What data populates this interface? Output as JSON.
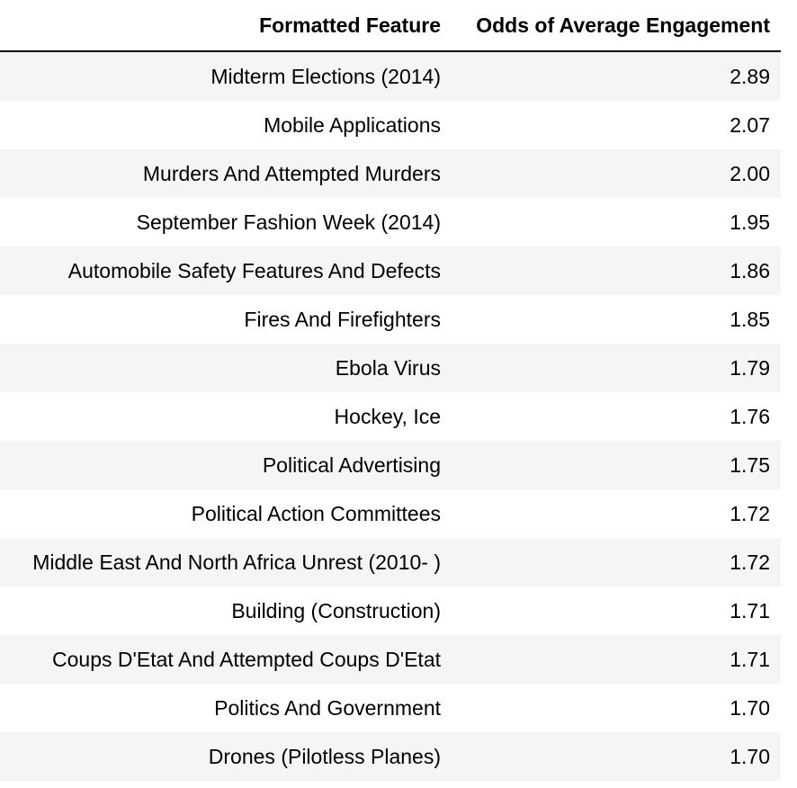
{
  "table": {
    "headers": [
      "Formatted Feature",
      "Odds of Average Engagement"
    ],
    "rows": [
      [
        "Midterm Elections (2014)",
        "2.89"
      ],
      [
        "Mobile Applications",
        "2.07"
      ],
      [
        "Murders And Attempted Murders",
        "2.00"
      ],
      [
        "September Fashion Week (2014)",
        "1.95"
      ],
      [
        "Automobile Safety Features And Defects",
        "1.86"
      ],
      [
        "Fires And Firefighters",
        "1.85"
      ],
      [
        "Ebola Virus",
        "1.79"
      ],
      [
        "Hockey, Ice",
        "1.76"
      ],
      [
        "Political Advertising",
        "1.75"
      ],
      [
        "Political Action Committees",
        "1.72"
      ],
      [
        "Middle East And North Africa Unrest (2010- )",
        "1.72"
      ],
      [
        "Building (Construction)",
        "1.71"
      ],
      [
        "Coups D'Etat And Attempted Coups D'Etat",
        "1.71"
      ],
      [
        "Politics And Government",
        "1.70"
      ],
      [
        "Drones (Pilotless Planes)",
        "1.70"
      ]
    ],
    "colors": {
      "stripe": "#f5f5f5",
      "rule": "#000000"
    }
  }
}
